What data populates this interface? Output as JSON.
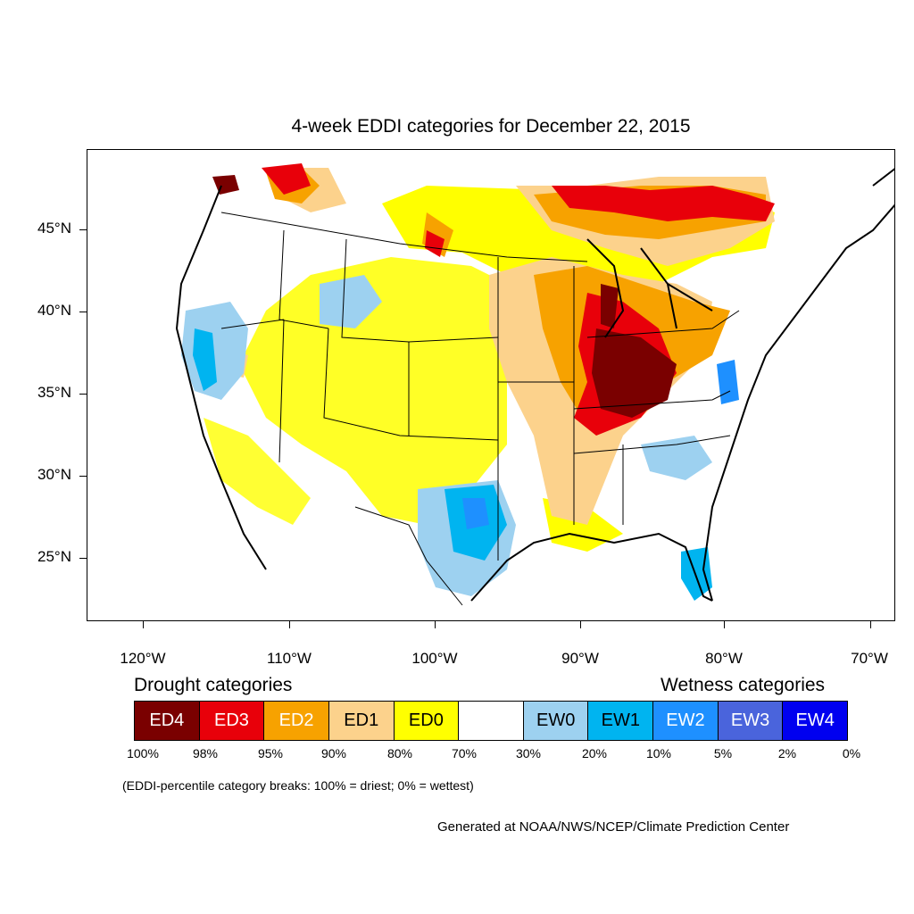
{
  "title": "4-week EDDI categories for December 22, 2015",
  "axes": {
    "lat_labels": [
      "45°N",
      "40°N",
      "35°N",
      "30°N",
      "25°N"
    ],
    "lon_labels": [
      "120°W",
      "110°W",
      "100°W",
      "90°W",
      "80°W",
      "70°W"
    ]
  },
  "legend": {
    "drought_heading": "Drought categories",
    "wetness_heading": "Wetness categories",
    "boxes": [
      {
        "label": "ED4",
        "color": "#7a0000",
        "text_color": "#ffffff"
      },
      {
        "label": "ED3",
        "color": "#e8000a",
        "text_color": "#ffffff"
      },
      {
        "label": "ED2",
        "color": "#f7a200",
        "text_color": "#ffffff"
      },
      {
        "label": "ED1",
        "color": "#fcd28c",
        "text_color": "#000000"
      },
      {
        "label": "ED0",
        "color": "#ffff00",
        "text_color": "#000000"
      },
      {
        "label": "",
        "color": "#ffffff",
        "text_color": "#000000"
      },
      {
        "label": "EW0",
        "color": "#9dd1f0",
        "text_color": "#000000"
      },
      {
        "label": "EW1",
        "color": "#00b4f0",
        "text_color": "#000000"
      },
      {
        "label": "EW2",
        "color": "#1e90ff",
        "text_color": "#ffffff"
      },
      {
        "label": "EW3",
        "color": "#4a64dc",
        "text_color": "#ffffff"
      },
      {
        "label": "EW4",
        "color": "#0000f0",
        "text_color": "#ffffff"
      }
    ],
    "ticks": [
      "100%",
      "98%",
      "95%",
      "90%",
      "80%",
      "70%",
      "30%",
      "20%",
      "10%",
      "5%",
      "2%",
      "0%"
    ]
  },
  "footnote": "(EDDI-percentile category breaks: 100% = driest; 0% = wettest)",
  "credit": "Generated at NOAA/NWS/NCEP/Climate Prediction Center"
}
